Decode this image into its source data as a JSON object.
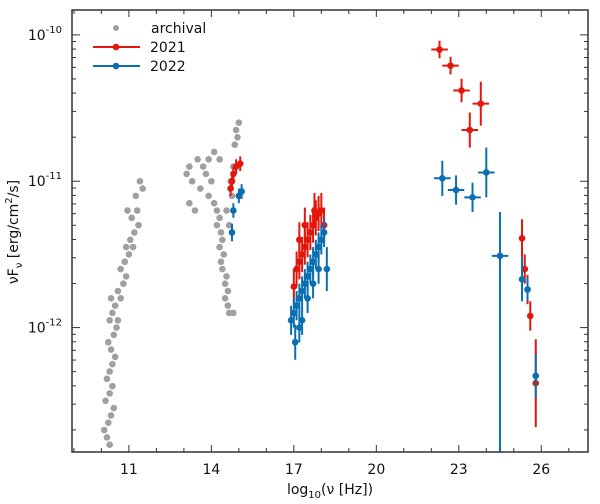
{
  "chart_data": {
    "type": "scatter",
    "title": "",
    "xlabel": "log10(ν [Hz])",
    "xlabel_parts": {
      "base": "log",
      "sub": "10",
      "rest": "(ν [Hz])"
    },
    "ylabel": "νFν [erg/cm2/s]",
    "ylabel_parts": {
      "pre": "νF",
      "sub": "ν",
      "mid": " [erg/cm",
      "sup": "2",
      "post": "/s]"
    },
    "xscale": "linear",
    "yscale": "log",
    "xlim": [
      8.93,
      27.7
    ],
    "ylim_log10": [
      -12.85,
      -9.83
    ],
    "x_ticks": [
      11,
      14,
      17,
      20,
      23,
      26
    ],
    "x_tick_labels": [
      "11",
      "14",
      "17",
      "20",
      "23",
      "26"
    ],
    "y_ticks_log10": [
      -10,
      -11,
      -12
    ],
    "y_tick_labels": [
      {
        "base": "10",
        "exp": "-10"
      },
      {
        "base": "10",
        "exp": "-11"
      },
      {
        "base": "10",
        "exp": "-12"
      }
    ],
    "legend": {
      "placement": "top-left",
      "entries": [
        {
          "label": "archival",
          "color": "#a0a0a0"
        },
        {
          "label": "2021",
          "color": "#e3160c"
        },
        {
          "label": "2022",
          "color": "#0a6fb0"
        }
      ]
    },
    "series": [
      {
        "name": "archival",
        "color": "#a0a0a0",
        "points": [
          [
            10.1,
            -12.7
          ],
          [
            10.2,
            -12.75
          ],
          [
            10.3,
            -12.8
          ],
          [
            10.25,
            -12.65
          ],
          [
            10.35,
            -12.6
          ],
          [
            10.15,
            -12.5
          ],
          [
            10.3,
            -12.45
          ],
          [
            10.45,
            -12.55
          ],
          [
            10.4,
            -12.4
          ],
          [
            10.2,
            -12.35
          ],
          [
            10.3,
            -12.3
          ],
          [
            10.4,
            -12.25
          ],
          [
            10.5,
            -12.2
          ],
          [
            10.35,
            -12.15
          ],
          [
            10.25,
            -12.1
          ],
          [
            10.45,
            -12.05
          ],
          [
            10.55,
            -12.0
          ],
          [
            10.3,
            -11.95
          ],
          [
            10.4,
            -11.9
          ],
          [
            10.6,
            -11.95
          ],
          [
            10.5,
            -11.85
          ],
          [
            10.35,
            -11.8
          ],
          [
            10.6,
            -11.75
          ],
          [
            10.7,
            -11.8
          ],
          [
            10.8,
            -11.7
          ],
          [
            10.9,
            -11.65
          ],
          [
            10.7,
            -11.6
          ],
          [
            10.85,
            -11.55
          ],
          [
            10.9,
            -11.45
          ],
          [
            11.05,
            -11.4
          ],
          [
            11.2,
            -11.35
          ],
          [
            11.1,
            -11.25
          ],
          [
            11.3,
            -11.2
          ],
          [
            11.25,
            -11.1
          ],
          [
            11.4,
            -11.0
          ],
          [
            11.0,
            -11.5
          ],
          [
            11.15,
            -11.45
          ],
          [
            11.35,
            -11.3
          ],
          [
            10.95,
            -11.2
          ],
          [
            11.5,
            -11.05
          ],
          [
            13.1,
            -10.95
          ],
          [
            13.2,
            -10.9
          ],
          [
            13.3,
            -11.0
          ],
          [
            13.5,
            -10.85
          ],
          [
            13.7,
            -10.9
          ],
          [
            13.9,
            -10.85
          ],
          [
            13.8,
            -10.95
          ],
          [
            14.0,
            -11.0
          ],
          [
            13.6,
            -11.05
          ],
          [
            13.9,
            -11.1
          ],
          [
            14.1,
            -11.15
          ],
          [
            14.2,
            -11.2
          ],
          [
            14.3,
            -11.25
          ],
          [
            14.2,
            -11.3
          ],
          [
            14.35,
            -11.35
          ],
          [
            14.4,
            -11.4
          ],
          [
            14.3,
            -11.45
          ],
          [
            14.45,
            -11.5
          ],
          [
            14.35,
            -11.55
          ],
          [
            14.4,
            -11.6
          ],
          [
            14.55,
            -11.65
          ],
          [
            14.5,
            -11.7
          ],
          [
            14.6,
            -11.75
          ],
          [
            14.5,
            -11.8
          ],
          [
            14.6,
            -11.85
          ],
          [
            14.65,
            -11.9
          ],
          [
            14.75,
            -11.1
          ],
          [
            14.8,
            -10.9
          ],
          [
            14.85,
            -10.75
          ],
          [
            14.9,
            -10.65
          ],
          [
            14.95,
            -10.7
          ],
          [
            15.0,
            -10.6
          ],
          [
            14.7,
            -11.0
          ],
          [
            14.55,
            -11.2
          ],
          [
            14.65,
            -11.3
          ],
          [
            14.1,
            -10.8
          ],
          [
            14.3,
            -10.85
          ],
          [
            13.2,
            -11.15
          ],
          [
            13.4,
            -11.2
          ],
          [
            14.8,
            -11.9
          ]
        ]
      },
      {
        "name": "2021",
        "color": "#e3160c",
        "points": [
          {
            "x": 14.7,
            "y": -11.05,
            "yerr": 0.05
          },
          {
            "x": 14.8,
            "y": -10.95,
            "yerr": 0.05
          },
          {
            "x": 14.9,
            "y": -10.9,
            "yerr": 0.05
          },
          {
            "x": 15.05,
            "y": -10.88,
            "yerr": 0.05
          },
          {
            "x": 14.75,
            "y": -11.0,
            "yerr": 0.05
          },
          {
            "x": 17.0,
            "y": -11.72,
            "yerr": 0.12
          },
          {
            "x": 17.1,
            "y": -11.6,
            "yerr": 0.12
          },
          {
            "x": 17.2,
            "y": -11.55,
            "yerr": 0.12
          },
          {
            "x": 17.3,
            "y": -11.5,
            "yerr": 0.12
          },
          {
            "x": 17.4,
            "y": -11.45,
            "yerr": 0.12
          },
          {
            "x": 17.5,
            "y": -11.4,
            "yerr": 0.12
          },
          {
            "x": 17.6,
            "y": -11.35,
            "yerr": 0.12
          },
          {
            "x": 17.7,
            "y": -11.3,
            "yerr": 0.12
          },
          {
            "x": 17.8,
            "y": -11.25,
            "yerr": 0.12
          },
          {
            "x": 17.9,
            "y": -11.22,
            "yerr": 0.12
          },
          {
            "x": 18.0,
            "y": -11.2,
            "yerr": 0.12
          },
          {
            "x": 18.1,
            "y": -11.3,
            "yerr": 0.12
          },
          {
            "x": 17.75,
            "y": -11.2,
            "yerr": 0.12
          },
          {
            "x": 17.4,
            "y": -11.3,
            "yerr": 0.12
          },
          {
            "x": 17.2,
            "y": -11.4,
            "yerr": 0.12
          },
          {
            "x": 22.3,
            "y": -10.1,
            "yerr": 0.06,
            "xerr": 0.3
          },
          {
            "x": 22.7,
            "y": -10.21,
            "yerr": 0.06,
            "xerr": 0.3
          },
          {
            "x": 23.1,
            "y": -10.38,
            "yerr": 0.08,
            "xerr": 0.3
          },
          {
            "x": 23.4,
            "y": -10.65,
            "yerr": 0.12,
            "xerr": 0.3
          },
          {
            "x": 23.8,
            "y": -10.47,
            "yerr": 0.15,
            "xerr": 0.3
          },
          {
            "x": 25.3,
            "y": -11.39,
            "yerr": 0.13
          },
          {
            "x": 25.4,
            "y": -11.6,
            "yerr": 0.1
          },
          {
            "x": 25.5,
            "y": -11.74,
            "yerr": 0.1
          },
          {
            "x": 25.6,
            "y": -11.92,
            "yerr": 0.1
          },
          {
            "x": 25.8,
            "y": -12.38,
            "yerr": 0.3
          }
        ]
      },
      {
        "name": "2022",
        "color": "#0a6fb0",
        "points": [
          {
            "x": 14.75,
            "y": -11.35,
            "yerr": 0.06
          },
          {
            "x": 14.8,
            "y": -11.2,
            "yerr": 0.05
          },
          {
            "x": 15.0,
            "y": -11.1,
            "yerr": 0.05
          },
          {
            "x": 15.1,
            "y": -11.07,
            "yerr": 0.05
          },
          {
            "x": 16.9,
            "y": -11.95,
            "yerr": 0.1
          },
          {
            "x": 17.0,
            "y": -11.9,
            "yerr": 0.1
          },
          {
            "x": 17.1,
            "y": -11.85,
            "yerr": 0.1
          },
          {
            "x": 17.2,
            "y": -11.8,
            "yerr": 0.1
          },
          {
            "x": 17.3,
            "y": -11.75,
            "yerr": 0.1
          },
          {
            "x": 17.4,
            "y": -11.7,
            "yerr": 0.1
          },
          {
            "x": 17.5,
            "y": -11.65,
            "yerr": 0.1
          },
          {
            "x": 17.6,
            "y": -11.6,
            "yerr": 0.1
          },
          {
            "x": 17.7,
            "y": -11.55,
            "yerr": 0.1
          },
          {
            "x": 17.8,
            "y": -11.5,
            "yerr": 0.1
          },
          {
            "x": 17.9,
            "y": -11.45,
            "yerr": 0.1
          },
          {
            "x": 18.0,
            "y": -11.4,
            "yerr": 0.1
          },
          {
            "x": 18.1,
            "y": -11.35,
            "yerr": 0.1
          },
          {
            "x": 18.2,
            "y": -11.6,
            "yerr": 0.15
          },
          {
            "x": 17.05,
            "y": -12.1,
            "yerr": 0.12
          },
          {
            "x": 17.3,
            "y": -11.95,
            "yerr": 0.1
          },
          {
            "x": 17.5,
            "y": -11.8,
            "yerr": 0.1
          },
          {
            "x": 17.7,
            "y": -11.7,
            "yerr": 0.1
          },
          {
            "x": 17.9,
            "y": -11.6,
            "yerr": 0.1
          },
          {
            "x": 17.2,
            "y": -12.0,
            "yerr": 0.1
          },
          {
            "x": 22.4,
            "y": -10.98,
            "yerr": 0.12,
            "xerr": 0.3
          },
          {
            "x": 22.9,
            "y": -11.06,
            "yerr": 0.1,
            "xerr": 0.3
          },
          {
            "x": 23.5,
            "y": -11.11,
            "yerr": 0.1,
            "xerr": 0.3
          },
          {
            "x": 24.0,
            "y": -10.94,
            "yerr": 0.17,
            "xerr": 0.3
          },
          {
            "x": 24.5,
            "y": -11.51,
            "yerr_up": 0.3,
            "yerr_down": 1.5,
            "xerr": 0.3
          },
          {
            "x": 25.3,
            "y": -11.67,
            "yerr": 0.15
          },
          {
            "x": 25.5,
            "y": -11.74,
            "yerr": 0.08
          },
          {
            "x": 25.8,
            "y": -12.33,
            "yerr": 0.15
          }
        ]
      }
    ]
  }
}
